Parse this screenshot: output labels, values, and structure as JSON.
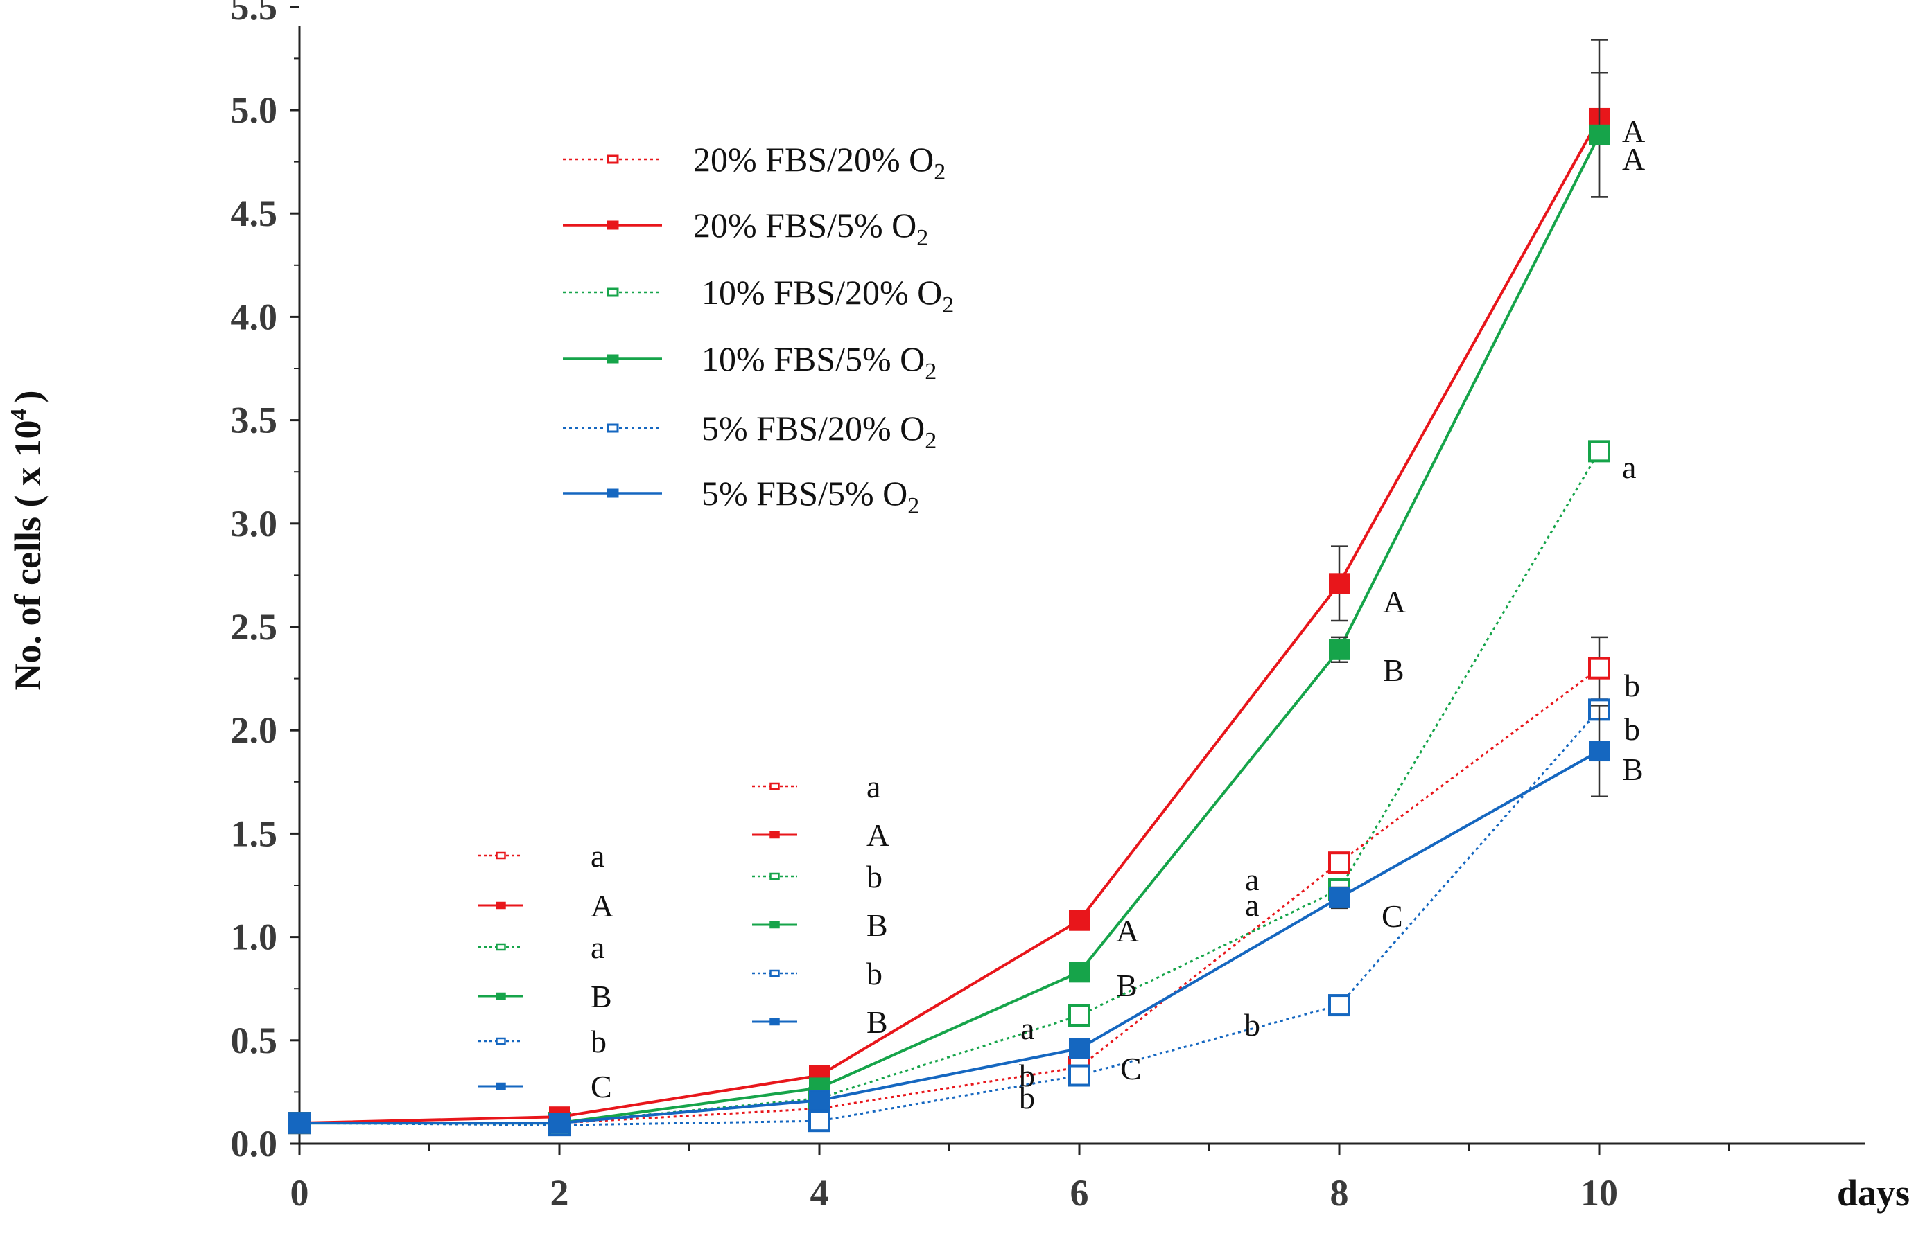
{
  "chart_data": {
    "type": "line",
    "xlabel": "days",
    "ylabel": "No. of cells ( x 10",
    "ylabel_sup": "4",
    "ylabel_end": ")",
    "xlim": [
      0,
      12
    ],
    "ylim": [
      0.0,
      5.5
    ],
    "x_ticks": [
      "0",
      "2",
      "4",
      "6",
      "8",
      "10"
    ],
    "y_ticks": [
      "0.0",
      "0.5",
      "1.0",
      "1.5",
      "2.0",
      "2.5",
      "3.0",
      "3.5",
      "4.0",
      "4.5",
      "5.0",
      "5.5"
    ],
    "x": [
      0,
      2,
      4,
      6,
      8,
      10
    ],
    "series": [
      {
        "name": "20% FBS/20% O",
        "sub": "2",
        "color": "#e8161b",
        "dashed": true,
        "filled": false,
        "values": [
          0.1,
          0.1,
          0.17,
          0.37,
          1.36,
          2.3
        ],
        "errors": [
          0,
          0,
          0,
          0,
          0,
          0.15
        ]
      },
      {
        "name": "20% FBS/5% O",
        "sub": "2",
        "color": "#e8161b",
        "dashed": false,
        "filled": true,
        "values": [
          0.1,
          0.13,
          0.33,
          1.08,
          2.71,
          4.96
        ],
        "errors": [
          0,
          0,
          0,
          0.03,
          0.18,
          0.38
        ]
      },
      {
        "name": "10% FBS/20% O",
        "sub": "2",
        "color": "#16a44a",
        "dashed": true,
        "filled": false,
        "values": [
          0.1,
          0.1,
          0.22,
          0.62,
          1.23,
          3.35
        ],
        "errors": [
          0,
          0,
          0,
          0,
          0,
          0
        ]
      },
      {
        "name": "10% FBS/5% O",
        "sub": "2",
        "color": "#16a44a",
        "dashed": false,
        "filled": true,
        "values": [
          0.1,
          0.1,
          0.27,
          0.83,
          2.39,
          4.88
        ],
        "errors": [
          0,
          0,
          0,
          0,
          0.06,
          0.3
        ]
      },
      {
        "name": "5% FBS/20% O",
        "sub": "2",
        "color": "#1567c0",
        "dashed": true,
        "filled": false,
        "values": [
          0.1,
          0.09,
          0.11,
          0.33,
          0.67,
          2.1
        ],
        "errors": [
          0,
          0,
          0,
          0,
          0,
          0
        ]
      },
      {
        "name": "5% FBS/5% O",
        "sub": "2",
        "color": "#1567c0",
        "dashed": false,
        "filled": true,
        "values": [
          0.1,
          0.1,
          0.21,
          0.46,
          1.19,
          1.9
        ],
        "errors": [
          0,
          0,
          0,
          0,
          0.05,
          0.22
        ]
      }
    ],
    "legend_placement": "upper-left inside plot",
    "annotations": [
      {
        "text": "A",
        "x": 10,
        "y": 4.96
      },
      {
        "text": "A",
        "x": 10,
        "y": 4.82
      },
      {
        "text": "a",
        "x": 10,
        "y": 3.35
      },
      {
        "text": "b",
        "x": 10,
        "y": 2.3
      },
      {
        "text": "b",
        "x": 10,
        "y": 2.1
      },
      {
        "text": "B",
        "x": 10,
        "y": 1.9
      },
      {
        "text": "A",
        "x": 8,
        "y": 2.71
      },
      {
        "text": "B",
        "x": 8,
        "y": 2.39
      },
      {
        "text": "a",
        "x": 8,
        "y": 1.36
      },
      {
        "text": "a",
        "x": 8,
        "y": 1.23
      },
      {
        "text": "C",
        "x": 8,
        "y": 1.19
      },
      {
        "text": "b",
        "x": 8,
        "y": 0.67
      },
      {
        "text": "A",
        "x": 6,
        "y": 1.05
      },
      {
        "text": "B",
        "x": 6,
        "y": 0.83
      },
      {
        "text": "a",
        "x": 6,
        "y": 0.62
      },
      {
        "text": "C",
        "x": 6,
        "y": 0.44
      },
      {
        "text": "b",
        "x": 6,
        "y": 0.4
      },
      {
        "text": "b",
        "x": 6,
        "y": 0.3
      }
    ],
    "stat_legends": [
      {
        "day": 4,
        "labels": [
          "a",
          "A",
          "a",
          "B",
          "b",
          "C"
        ]
      },
      {
        "day": 6,
        "labels": [
          "a",
          "A",
          "b",
          "B",
          "b",
          "B"
        ]
      }
    ]
  }
}
